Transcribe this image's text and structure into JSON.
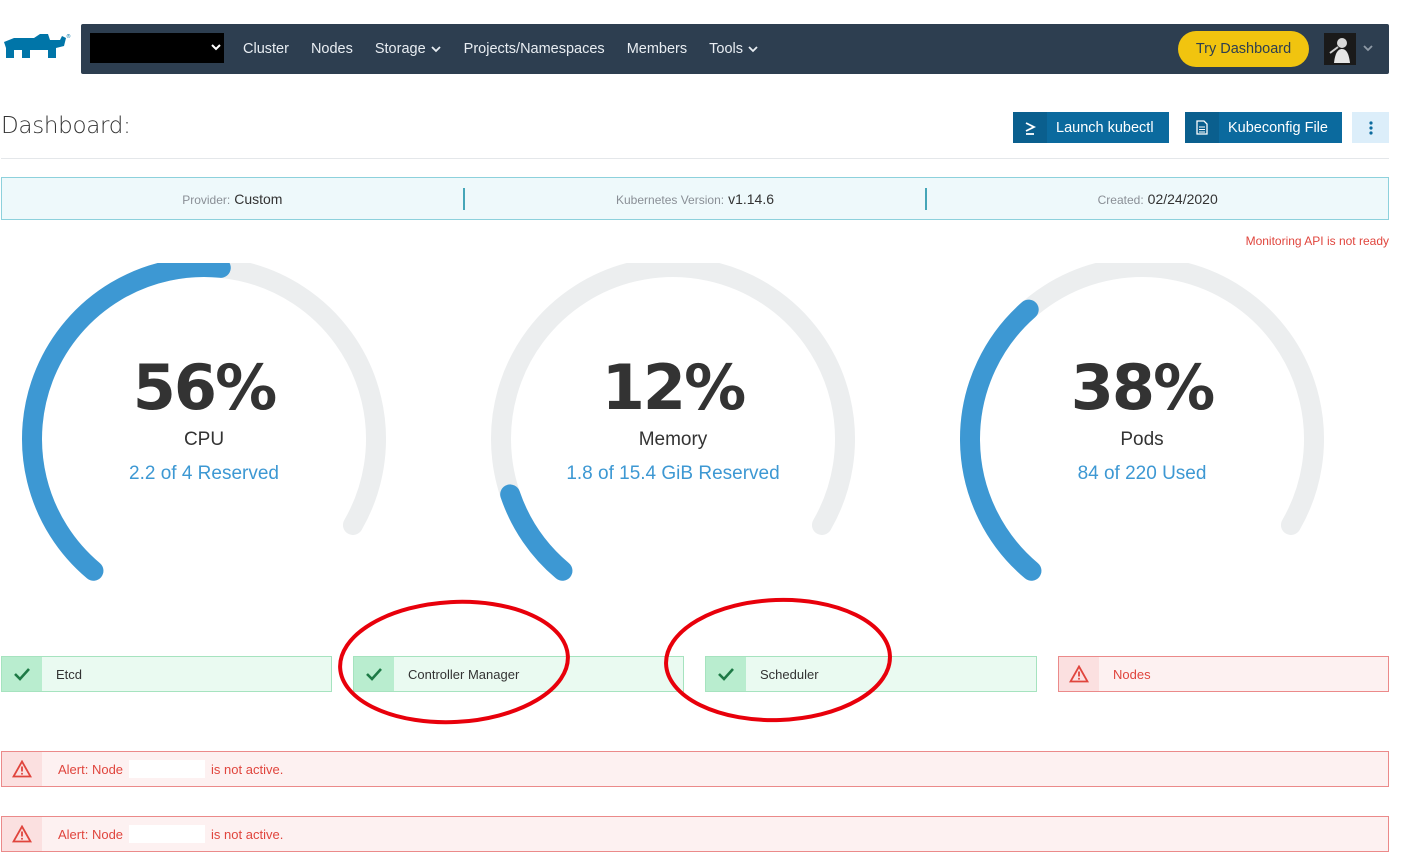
{
  "header": {
    "nav": [
      {
        "label": "Cluster",
        "dropdown": false
      },
      {
        "label": "Nodes",
        "dropdown": false
      },
      {
        "label": "Storage",
        "dropdown": true
      },
      {
        "label": "Projects/Namespaces",
        "dropdown": false
      },
      {
        "label": "Members",
        "dropdown": false
      },
      {
        "label": "Tools",
        "dropdown": true
      }
    ],
    "try_dashboard": "Try Dashboard"
  },
  "page": {
    "title": "Dashboard:",
    "launch_kubectl": "Launch kubectl",
    "kubeconfig_file": "Kubeconfig File"
  },
  "info": {
    "provider_label": "Provider:",
    "provider_value": "Custom",
    "k8s_label": "Kubernetes Version:",
    "k8s_value": "v1.14.6",
    "created_label": "Created:",
    "created_value": "02/24/2020"
  },
  "monitoring_warning": "Monitoring API is not ready",
  "gauges": [
    {
      "value": "56%",
      "label": "CPU",
      "sub": "2.2 of 4 Reserved",
      "fraction": 0.56
    },
    {
      "value": "12%",
      "label": "Memory",
      "sub": "1.8 of 15.4 GiB Reserved",
      "fraction": 0.12
    },
    {
      "value": "38%",
      "label": "Pods",
      "sub": "84 of 220 Used",
      "fraction": 0.38
    }
  ],
  "components": [
    {
      "label": "Etcd",
      "status": "ok"
    },
    {
      "label": "Controller Manager",
      "status": "ok"
    },
    {
      "label": "Scheduler",
      "status": "ok"
    },
    {
      "label": "Nodes",
      "status": "error"
    }
  ],
  "alerts": [
    {
      "prefix": "Alert: Node",
      "suffix": "is not active."
    },
    {
      "prefix": "Alert: Node",
      "suffix": "is not active."
    }
  ],
  "colors": {
    "topbar": "#2d3e50",
    "accent_blue": "#3d98d3",
    "try_button": "#f1c40f",
    "ok_green": "#27ae60",
    "error_red": "#e0453d",
    "annotation_red": "#e8000b"
  }
}
